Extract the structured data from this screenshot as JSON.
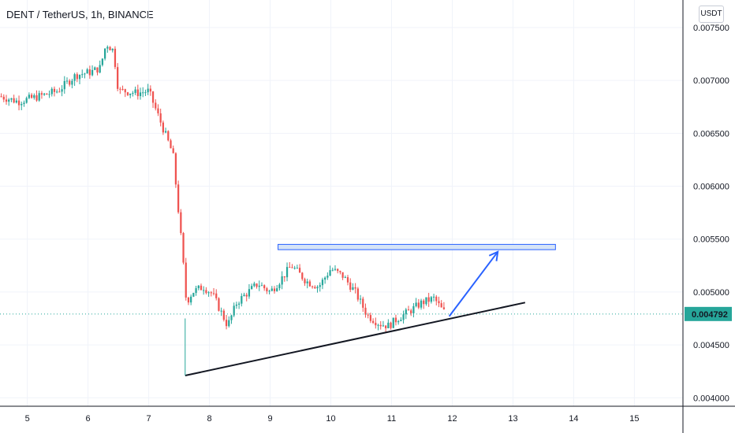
{
  "header": {
    "symbol_title": "DENT / TetherUS, 1h, BINANCE",
    "currency_button": "USDT"
  },
  "colors": {
    "up": "#26a69a",
    "down": "#ef5350",
    "grid": "#f0f3fa",
    "last_price_line": "#26a69a",
    "rectangle_fill": "#d6e4f7",
    "rectangle_stroke": "#2962ff",
    "arrow": "#2962ff",
    "trendline": "#131722"
  },
  "chart_data": {
    "type": "candlestick",
    "symbol": "DENT / TetherUS",
    "interval": "1h",
    "exchange": "BINANCE",
    "quote": "USDT",
    "x_ticks": [
      "5",
      "6",
      "7",
      "8",
      "9",
      "10",
      "11",
      "12",
      "13",
      "14",
      "15"
    ],
    "xlim": [
      4.55,
      15.8
    ],
    "y_ticks": [
      "0.004000",
      "0.004500",
      "0.005000",
      "0.005500",
      "0.006000",
      "0.006500",
      "0.007000",
      "0.007500"
    ],
    "ylim": [
      0.00392,
      0.00776
    ],
    "grid": true,
    "last_price": "0.004792",
    "last_price_value": 0.004792,
    "price_path": [
      [
        4.55,
        0.00685
      ],
      [
        4.85,
        0.0068
      ],
      [
        5.2,
        0.00685
      ],
      [
        5.5,
        0.0069
      ],
      [
        5.8,
        0.00705
      ],
      [
        6.05,
        0.00708
      ],
      [
        6.2,
        0.00712
      ],
      [
        6.3,
        0.00735
      ],
      [
        6.42,
        0.00728
      ],
      [
        6.5,
        0.0069
      ],
      [
        6.6,
        0.0069
      ],
      [
        6.8,
        0.00688
      ],
      [
        7.0,
        0.0069
      ],
      [
        7.2,
        0.0066
      ],
      [
        7.4,
        0.0063
      ],
      [
        7.55,
        0.0054
      ],
      [
        7.62,
        0.0049
      ],
      [
        7.72,
        0.005
      ],
      [
        7.9,
        0.00505
      ],
      [
        8.05,
        0.00498
      ],
      [
        8.2,
        0.0048
      ],
      [
        8.3,
        0.00468
      ],
      [
        8.45,
        0.0049
      ],
      [
        8.6,
        0.00498
      ],
      [
        8.8,
        0.00508
      ],
      [
        9.0,
        0.005
      ],
      [
        9.15,
        0.0051
      ],
      [
        9.35,
        0.00525
      ],
      [
        9.6,
        0.0051
      ],
      [
        9.8,
        0.00505
      ],
      [
        10.0,
        0.00522
      ],
      [
        10.2,
        0.00515
      ],
      [
        10.4,
        0.005
      ],
      [
        10.6,
        0.00478
      ],
      [
        10.8,
        0.0047
      ],
      [
        10.95,
        0.00468
      ],
      [
        11.1,
        0.00475
      ],
      [
        11.3,
        0.00482
      ],
      [
        11.5,
        0.0049
      ],
      [
        11.7,
        0.00494
      ],
      [
        11.82,
        0.00484
      ],
      [
        11.9,
        0.004792
      ]
    ],
    "drawings": {
      "resistance_zone": {
        "x": [
          9.13,
          13.7
        ],
        "y": [
          0.0054,
          0.00545
        ]
      },
      "support_trendline": {
        "from": [
          7.6,
          0.00421
        ],
        "to": [
          13.2,
          0.0049
        ]
      },
      "arrow": {
        "from": [
          11.95,
          0.00477
        ],
        "to": [
          12.75,
          0.00538
        ]
      },
      "wick_line": {
        "x": 7.6,
        "y": [
          0.00421,
          0.00475
        ]
      }
    }
  }
}
